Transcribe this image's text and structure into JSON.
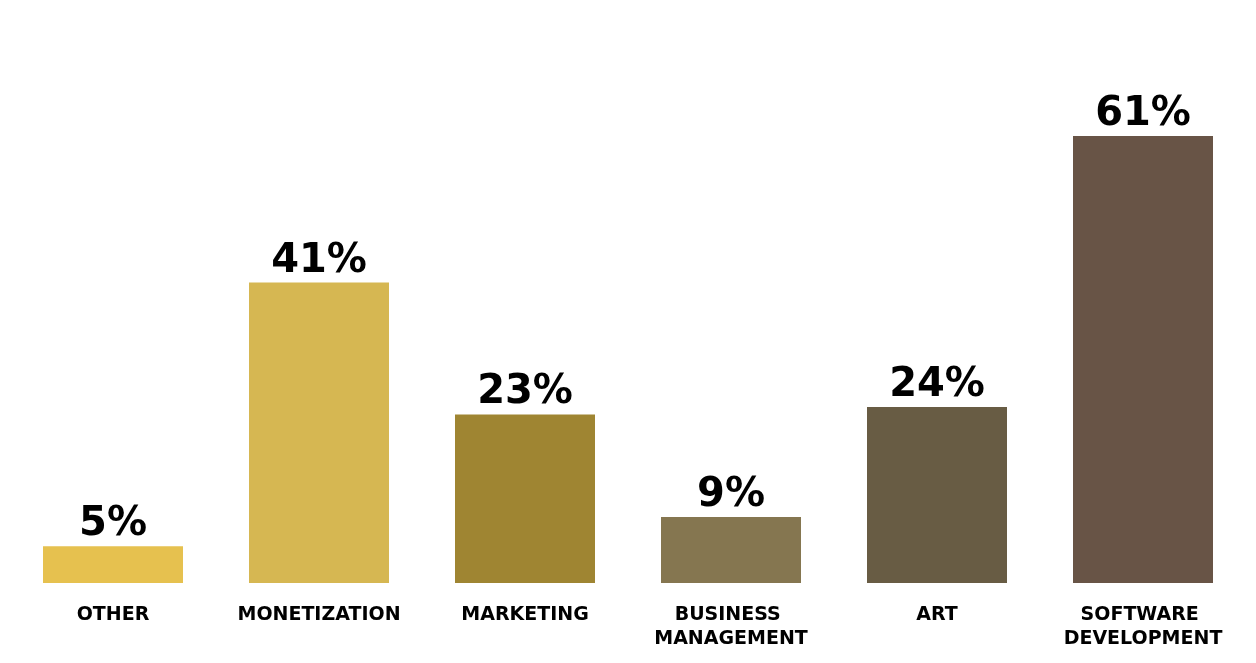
{
  "chart_data": {
    "type": "bar",
    "categories": [
      "OTHER",
      "MONETIZATION",
      "MARKETING",
      "BUSINESS MANAGEMENT",
      "ART",
      "SOFTWARE DEVELOPMENT"
    ],
    "values": [
      5,
      41,
      23,
      9,
      24,
      61
    ],
    "colors": [
      "#e6c14f",
      "#d6b752",
      "#9f8532",
      "#857650",
      "#685c44",
      "#685446"
    ],
    "value_labels": [
      "5%",
      "41%",
      "23%",
      "9%",
      "24%",
      "61%"
    ]
  }
}
